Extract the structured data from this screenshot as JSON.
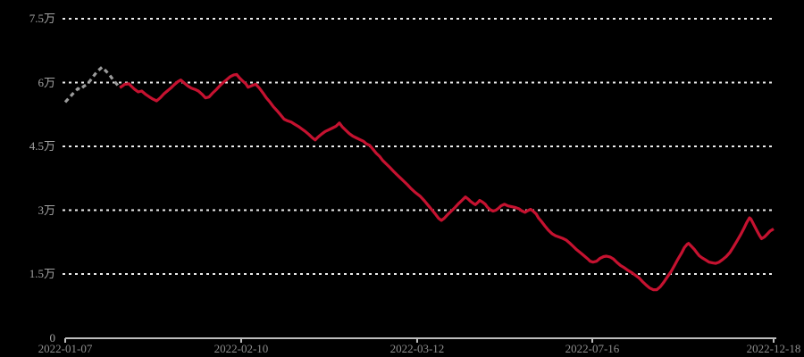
{
  "colors": {
    "background": "#000000",
    "main_line": "#c51230",
    "leading_line": "#9b9b9b",
    "gridline": "#ececec",
    "axis": "#bdbdbd",
    "y_label": "#a3a3a3",
    "x_label": "#8d8d8d"
  },
  "chart_data": {
    "type": "line",
    "title": "",
    "legend": "none",
    "grid": "horizontal dotted gridlines on black background",
    "y_axis": {
      "unit": "万",
      "ylim": [
        0,
        7.5
      ],
      "tick_labels": [
        "7.5万",
        "6万",
        "4.5万",
        "3万",
        "1.5万",
        "0"
      ],
      "tick_values": [
        7.5,
        6,
        4.5,
        3,
        1.5,
        0
      ]
    },
    "x_axis": {
      "tick_labels": [
        "2022-01-07",
        "2022-02-10",
        "2022-03-12",
        "2022-07-16",
        "2022-12-18"
      ],
      "tick_positions": [
        0,
        0.2484,
        0.4968,
        0.744,
        1.0
      ]
    },
    "series": [
      {
        "name": "leading-dashed-segment",
        "style": "dashed",
        "color": "#9b9b9b",
        "points": [
          [
            0.0,
            5.54
          ],
          [
            0.006,
            5.65
          ],
          [
            0.013,
            5.78
          ],
          [
            0.018,
            5.86
          ],
          [
            0.021,
            5.83
          ],
          [
            0.026,
            5.91
          ],
          [
            0.03,
            5.95
          ],
          [
            0.035,
            6.04
          ],
          [
            0.04,
            6.15
          ],
          [
            0.045,
            6.26
          ],
          [
            0.052,
            6.36
          ],
          [
            0.057,
            6.28
          ],
          [
            0.062,
            6.19
          ],
          [
            0.067,
            6.08
          ],
          [
            0.072,
            5.98
          ],
          [
            0.077,
            5.88
          ]
        ]
      },
      {
        "name": "main-series",
        "style": "solid",
        "color": "#c51230",
        "points": [
          [
            0.077,
            5.88
          ],
          [
            0.081,
            5.92
          ],
          [
            0.084,
            5.96
          ],
          [
            0.09,
            5.97
          ],
          [
            0.093,
            5.92
          ],
          [
            0.098,
            5.84
          ],
          [
            0.103,
            5.78
          ],
          [
            0.108,
            5.8
          ],
          [
            0.113,
            5.73
          ],
          [
            0.119,
            5.66
          ],
          [
            0.124,
            5.61
          ],
          [
            0.129,
            5.57
          ],
          [
            0.134,
            5.64
          ],
          [
            0.139,
            5.73
          ],
          [
            0.144,
            5.8
          ],
          [
            0.149,
            5.87
          ],
          [
            0.154,
            5.95
          ],
          [
            0.159,
            6.02
          ],
          [
            0.163,
            6.06
          ],
          [
            0.168,
            5.99
          ],
          [
            0.173,
            5.92
          ],
          [
            0.178,
            5.87
          ],
          [
            0.183,
            5.84
          ],
          [
            0.188,
            5.8
          ],
          [
            0.193,
            5.73
          ],
          [
            0.198,
            5.64
          ],
          [
            0.203,
            5.66
          ],
          [
            0.208,
            5.75
          ],
          [
            0.213,
            5.83
          ],
          [
            0.218,
            5.92
          ],
          [
            0.223,
            6.0
          ],
          [
            0.228,
            6.07
          ],
          [
            0.233,
            6.14
          ],
          [
            0.238,
            6.18
          ],
          [
            0.242,
            6.19
          ],
          [
            0.246,
            6.11
          ],
          [
            0.251,
            6.03
          ],
          [
            0.255,
            5.97
          ],
          [
            0.258,
            5.89
          ],
          [
            0.264,
            5.93
          ],
          [
            0.269,
            5.96
          ],
          [
            0.274,
            5.87
          ],
          [
            0.279,
            5.76
          ],
          [
            0.284,
            5.64
          ],
          [
            0.289,
            5.54
          ],
          [
            0.294,
            5.43
          ],
          [
            0.299,
            5.34
          ],
          [
            0.304,
            5.24
          ],
          [
            0.309,
            5.14
          ],
          [
            0.314,
            5.1
          ],
          [
            0.319,
            5.07
          ],
          [
            0.324,
            5.02
          ],
          [
            0.329,
            4.97
          ],
          [
            0.334,
            4.91
          ],
          [
            0.339,
            4.85
          ],
          [
            0.344,
            4.78
          ],
          [
            0.349,
            4.7
          ],
          [
            0.353,
            4.65
          ],
          [
            0.357,
            4.72
          ],
          [
            0.362,
            4.79
          ],
          [
            0.367,
            4.85
          ],
          [
            0.372,
            4.89
          ],
          [
            0.377,
            4.93
          ],
          [
            0.382,
            4.97
          ],
          [
            0.387,
            5.05
          ],
          [
            0.391,
            4.96
          ],
          [
            0.396,
            4.88
          ],
          [
            0.401,
            4.8
          ],
          [
            0.406,
            4.74
          ],
          [
            0.411,
            4.7
          ],
          [
            0.416,
            4.66
          ],
          [
            0.421,
            4.62
          ],
          [
            0.425,
            4.56
          ],
          [
            0.43,
            4.52
          ],
          [
            0.435,
            4.42
          ],
          [
            0.439,
            4.34
          ],
          [
            0.444,
            4.26
          ],
          [
            0.448,
            4.17
          ],
          [
            0.453,
            4.09
          ],
          [
            0.458,
            4.01
          ],
          [
            0.463,
            3.92
          ],
          [
            0.468,
            3.84
          ],
          [
            0.473,
            3.76
          ],
          [
            0.478,
            3.68
          ],
          [
            0.483,
            3.6
          ],
          [
            0.488,
            3.51
          ],
          [
            0.494,
            3.42
          ],
          [
            0.501,
            3.33
          ],
          [
            0.507,
            3.22
          ],
          [
            0.513,
            3.1
          ],
          [
            0.518,
            3.0
          ],
          [
            0.523,
            2.9
          ],
          [
            0.527,
            2.81
          ],
          [
            0.531,
            2.76
          ],
          [
            0.535,
            2.81
          ],
          [
            0.54,
            2.9
          ],
          [
            0.545,
            2.98
          ],
          [
            0.55,
            3.06
          ],
          [
            0.555,
            3.15
          ],
          [
            0.56,
            3.23
          ],
          [
            0.565,
            3.31
          ],
          [
            0.569,
            3.26
          ],
          [
            0.572,
            3.21
          ],
          [
            0.576,
            3.16
          ],
          [
            0.579,
            3.13
          ],
          [
            0.583,
            3.19
          ],
          [
            0.585,
            3.23
          ],
          [
            0.589,
            3.19
          ],
          [
            0.593,
            3.14
          ],
          [
            0.596,
            3.07
          ],
          [
            0.6,
            3.01
          ],
          [
            0.604,
            2.98
          ],
          [
            0.608,
            3.0
          ],
          [
            0.612,
            3.05
          ],
          [
            0.615,
            3.1
          ],
          [
            0.62,
            3.14
          ],
          [
            0.625,
            3.1
          ],
          [
            0.631,
            3.08
          ],
          [
            0.636,
            3.06
          ],
          [
            0.641,
            3.03
          ],
          [
            0.644,
            2.99
          ],
          [
            0.649,
            2.95
          ],
          [
            0.653,
            2.99
          ],
          [
            0.657,
            3.02
          ],
          [
            0.661,
            2.97
          ],
          [
            0.665,
            2.91
          ],
          [
            0.668,
            2.82
          ],
          [
            0.672,
            2.74
          ],
          [
            0.677,
            2.63
          ],
          [
            0.682,
            2.53
          ],
          [
            0.687,
            2.45
          ],
          [
            0.692,
            2.4
          ],
          [
            0.697,
            2.37
          ],
          [
            0.702,
            2.34
          ],
          [
            0.707,
            2.3
          ],
          [
            0.712,
            2.23
          ],
          [
            0.717,
            2.15
          ],
          [
            0.722,
            2.07
          ],
          [
            0.728,
            1.99
          ],
          [
            0.733,
            1.92
          ],
          [
            0.738,
            1.85
          ],
          [
            0.741,
            1.8
          ],
          [
            0.745,
            1.78
          ],
          [
            0.75,
            1.8
          ],
          [
            0.755,
            1.87
          ],
          [
            0.76,
            1.91
          ],
          [
            0.764,
            1.92
          ],
          [
            0.769,
            1.9
          ],
          [
            0.774,
            1.85
          ],
          [
            0.779,
            1.77
          ],
          [
            0.784,
            1.7
          ],
          [
            0.789,
            1.65
          ],
          [
            0.794,
            1.59
          ],
          [
            0.799,
            1.54
          ],
          [
            0.804,
            1.48
          ],
          [
            0.81,
            1.41
          ],
          [
            0.815,
            1.32
          ],
          [
            0.82,
            1.24
          ],
          [
            0.825,
            1.17
          ],
          [
            0.83,
            1.13
          ],
          [
            0.835,
            1.13
          ],
          [
            0.84,
            1.2
          ],
          [
            0.845,
            1.31
          ],
          [
            0.85,
            1.43
          ],
          [
            0.855,
            1.55
          ],
          [
            0.86,
            1.7
          ],
          [
            0.865,
            1.85
          ],
          [
            0.87,
            1.99
          ],
          [
            0.874,
            2.12
          ],
          [
            0.878,
            2.2
          ],
          [
            0.88,
            2.22
          ],
          [
            0.884,
            2.15
          ],
          [
            0.888,
            2.08
          ],
          [
            0.892,
            1.99
          ],
          [
            0.895,
            1.93
          ],
          [
            0.899,
            1.88
          ],
          [
            0.904,
            1.83
          ],
          [
            0.909,
            1.78
          ],
          [
            0.914,
            1.76
          ],
          [
            0.918,
            1.75
          ],
          [
            0.923,
            1.78
          ],
          [
            0.928,
            1.84
          ],
          [
            0.933,
            1.91
          ],
          [
            0.938,
            2.0
          ],
          [
            0.943,
            2.13
          ],
          [
            0.948,
            2.27
          ],
          [
            0.953,
            2.41
          ],
          [
            0.958,
            2.57
          ],
          [
            0.962,
            2.71
          ],
          [
            0.966,
            2.82
          ],
          [
            0.968,
            2.79
          ],
          [
            0.972,
            2.66
          ],
          [
            0.976,
            2.53
          ],
          [
            0.98,
            2.41
          ],
          [
            0.983,
            2.33
          ],
          [
            0.987,
            2.37
          ],
          [
            0.991,
            2.44
          ],
          [
            0.995,
            2.51
          ],
          [
            1.0,
            2.56
          ]
        ]
      }
    ]
  }
}
